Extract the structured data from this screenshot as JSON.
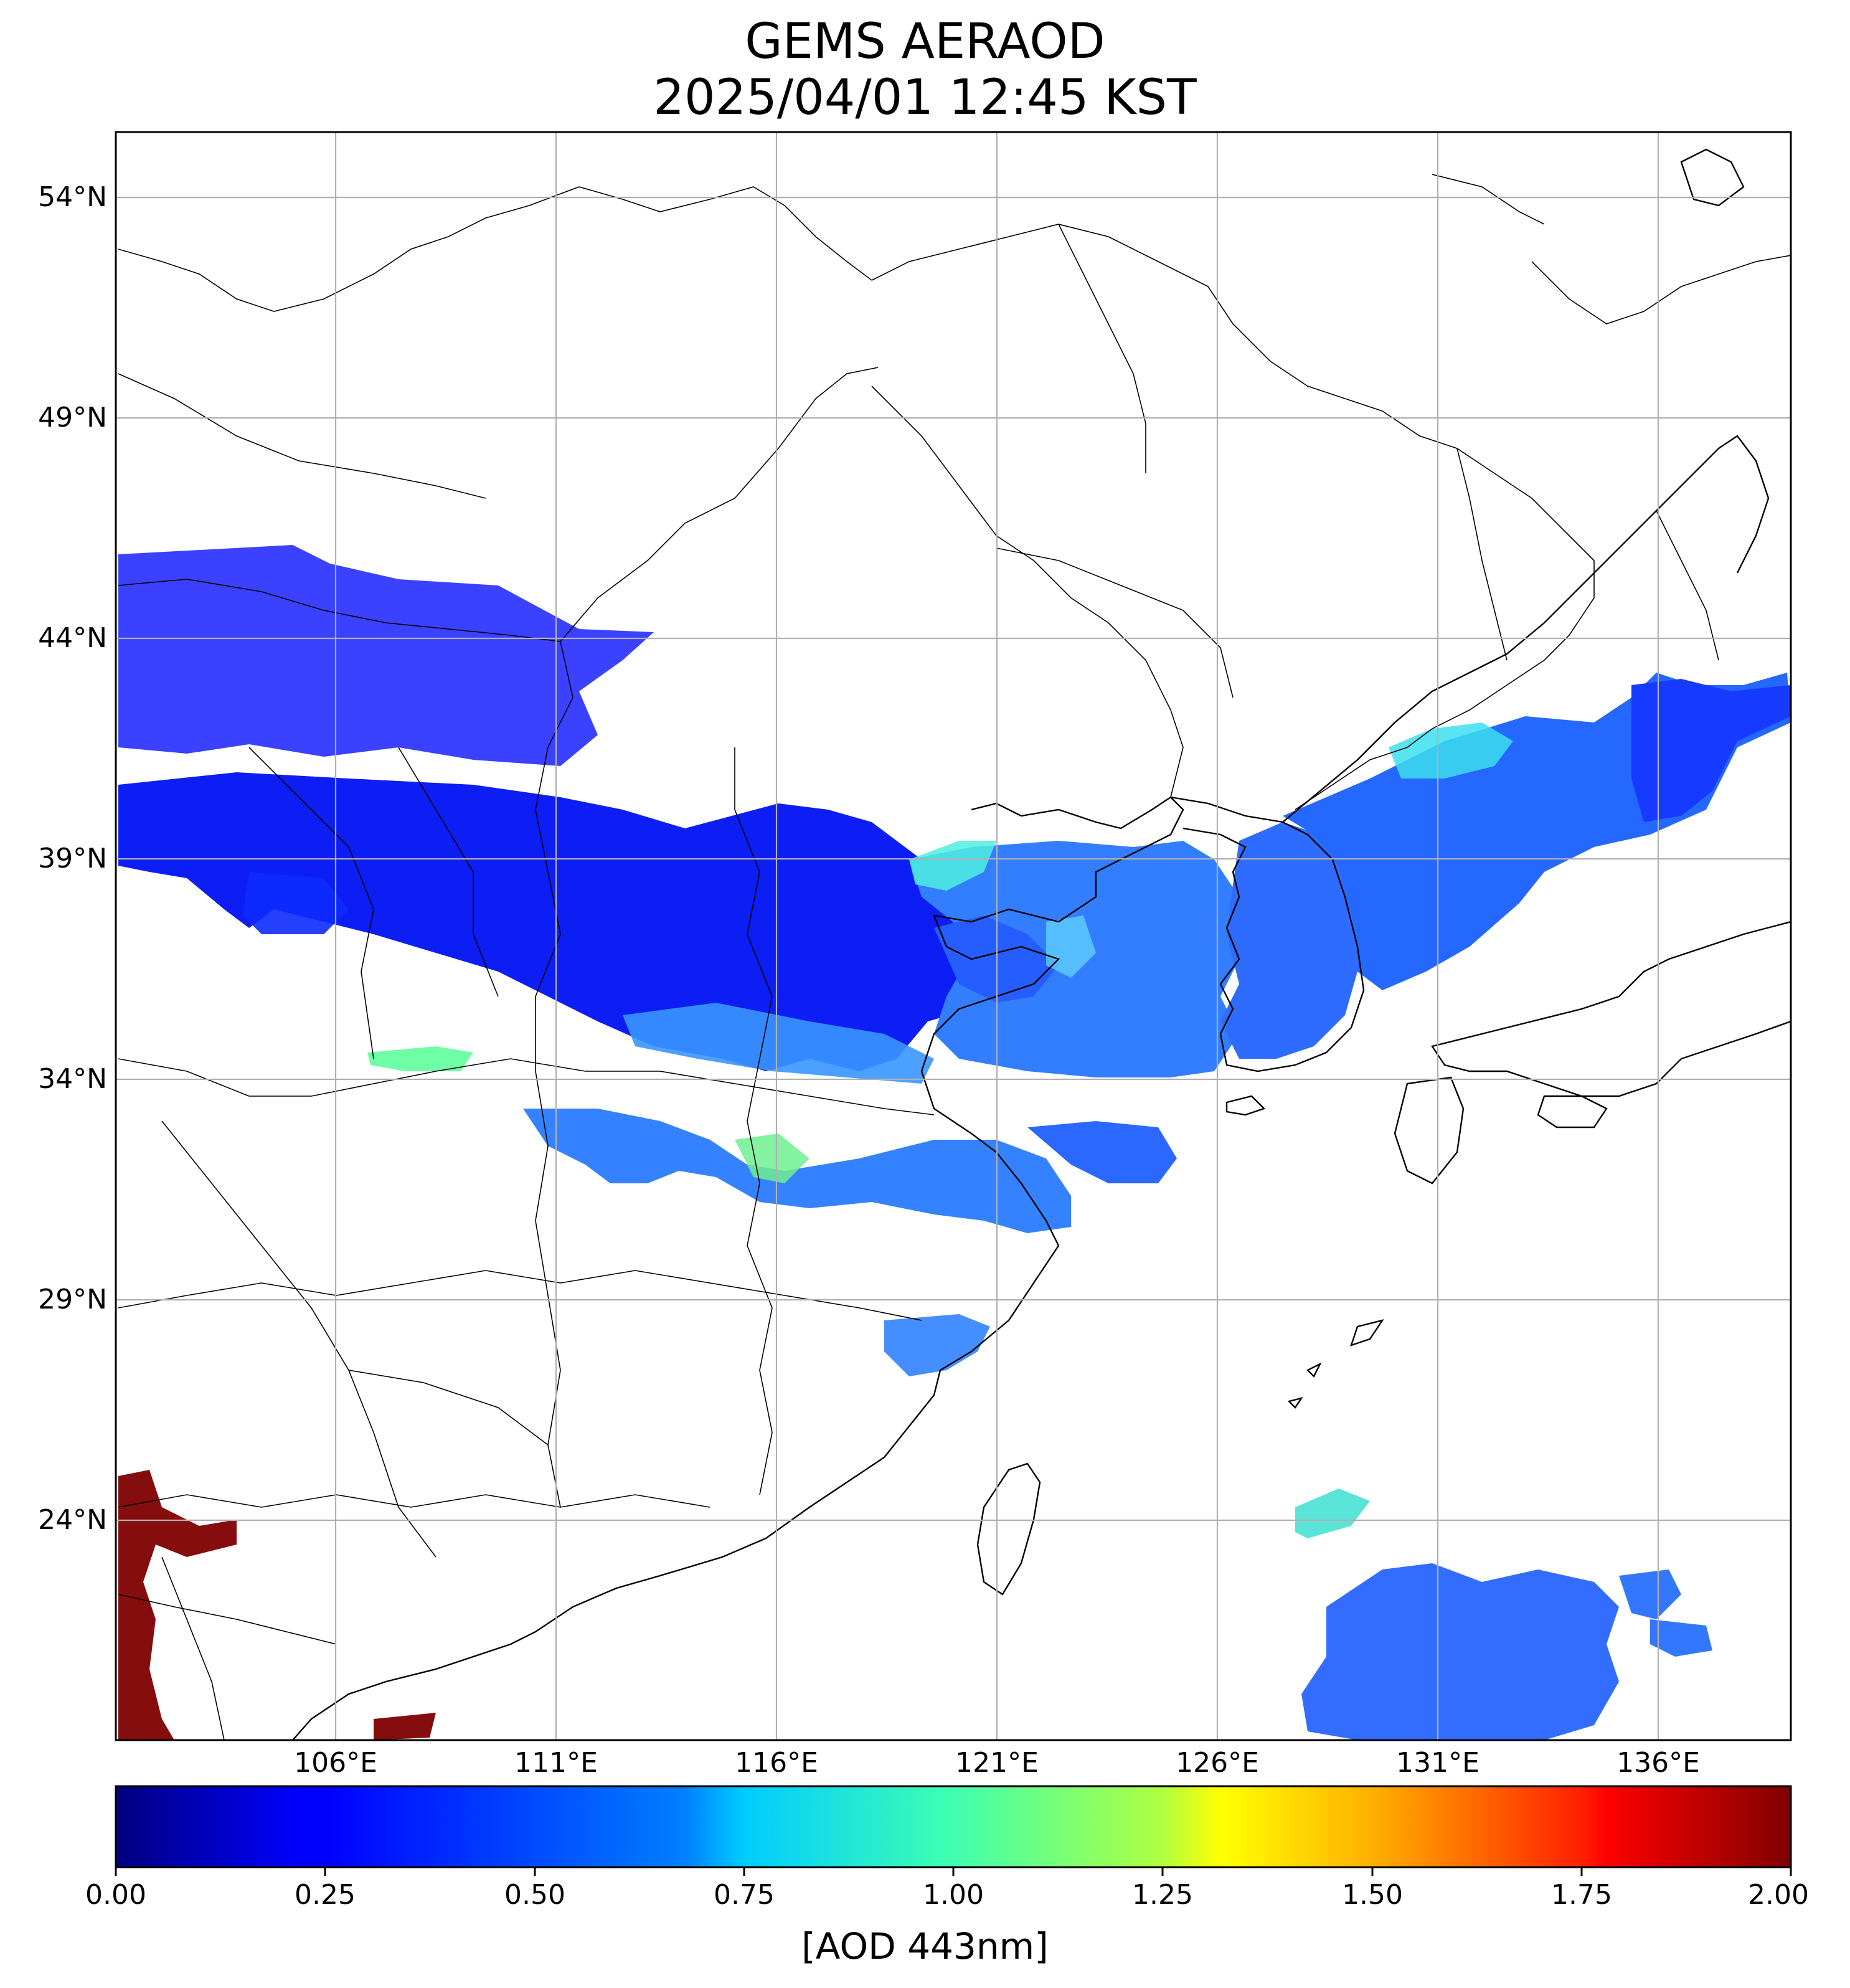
{
  "title": {
    "line1": "GEMS AERAOD",
    "line2": "2025/04/01 12:45 KST"
  },
  "map": {
    "lat_ticks": [
      {
        "value": 54,
        "label": "54°N"
      },
      {
        "value": 49,
        "label": "49°N"
      },
      {
        "value": 44,
        "label": "44°N"
      },
      {
        "value": 39,
        "label": "39°N"
      },
      {
        "value": 34,
        "label": "34°N"
      },
      {
        "value": 29,
        "label": "29°N"
      },
      {
        "value": 24,
        "label": "24°N"
      }
    ],
    "lon_ticks": [
      {
        "value": 106,
        "label": "106°E"
      },
      {
        "value": 111,
        "label": "111°E"
      },
      {
        "value": 116,
        "label": "116°E"
      },
      {
        "value": 121,
        "label": "121°E"
      },
      {
        "value": 126,
        "label": "126°E"
      },
      {
        "value": 131,
        "label": "131°E"
      },
      {
        "value": 136,
        "label": "136°E"
      }
    ],
    "lon_range": [
      101,
      139
    ],
    "lat_range": [
      19.5,
      55.5
    ],
    "grid": true
  },
  "colorbar": {
    "label": "[AOD 443nm]",
    "min": 0.0,
    "max": 2.0,
    "colormap": "jet",
    "ticks": [
      {
        "value": 0.0,
        "label": "0.00"
      },
      {
        "value": 0.25,
        "label": "0.25"
      },
      {
        "value": 0.5,
        "label": "0.50"
      },
      {
        "value": 0.75,
        "label": "0.75"
      },
      {
        "value": 1.0,
        "label": "1.00"
      },
      {
        "value": 1.25,
        "label": "1.25"
      },
      {
        "value": 1.5,
        "label": "1.50"
      },
      {
        "value": 1.75,
        "label": "1.75"
      },
      {
        "value": 2.0,
        "label": "2.00"
      }
    ]
  },
  "colors": {
    "aod_low": "#0000ff",
    "aod_mid": "#2f7fff",
    "aod_cyan": "#22ddee",
    "aod_green": "#55ff99",
    "aod_high": "#800000",
    "coastline": "#000000",
    "grid": "#b0b0b0"
  }
}
